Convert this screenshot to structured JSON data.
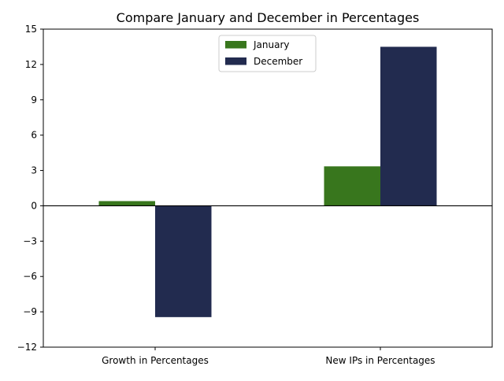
{
  "chart_data": {
    "type": "bar",
    "title": "Compare January and December in Percentages",
    "xlabel": "",
    "ylabel": "",
    "categories": [
      "Growth in Percentages",
      "New IPs in Percentages"
    ],
    "series": [
      {
        "name": "January",
        "values": [
          0.4,
          3.35
        ],
        "color": "#38761d"
      },
      {
        "name": "December",
        "values": [
          -9.45,
          13.5
        ],
        "color": "#222b4f"
      }
    ],
    "ylim": [
      -12,
      15
    ],
    "yticks": [
      -12,
      -9,
      -6,
      -3,
      0,
      3,
      6,
      9,
      12,
      15
    ],
    "ytick_labels": [
      "−12",
      "−9",
      "−6",
      "−3",
      "0",
      "3",
      "6",
      "9",
      "12",
      "15"
    ],
    "grid": false,
    "legend_position": "top-center",
    "zero_line": true
  }
}
